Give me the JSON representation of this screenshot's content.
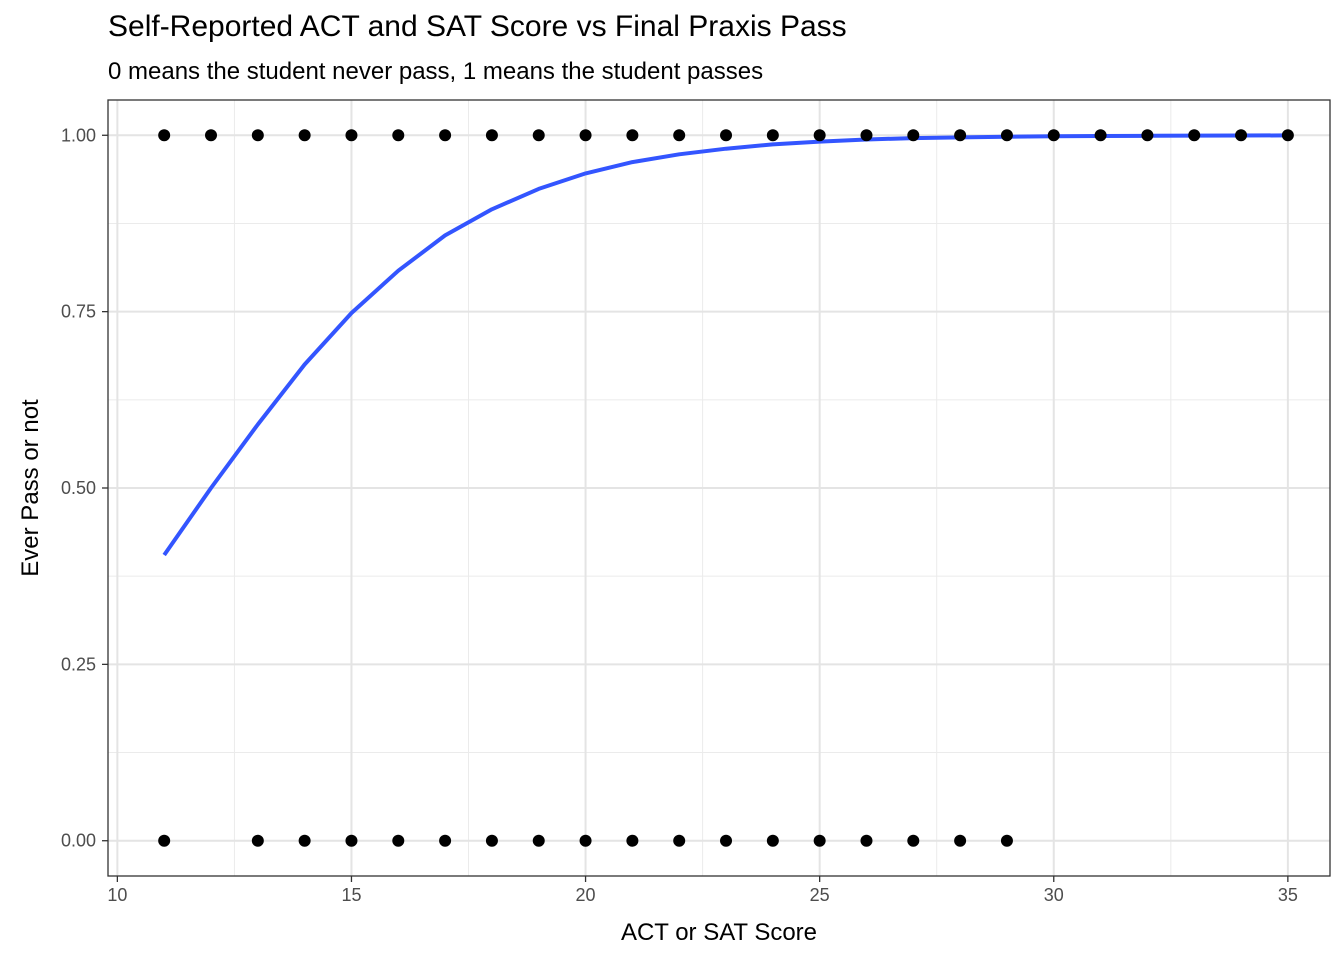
{
  "chart_data": {
    "type": "scatter",
    "title": "Self-Reported ACT and SAT Score vs Final Praxis Pass",
    "subtitle": "0 means the student never pass, 1 means the student passes",
    "xlabel": "ACT or SAT Score",
    "ylabel": "Ever Pass or not",
    "xlim": [
      9.8,
      35.9
    ],
    "ylim": [
      -0.05,
      1.05
    ],
    "x_ticks": [
      10,
      15,
      20,
      25,
      30,
      35
    ],
    "x_tick_labels": [
      "10",
      "15",
      "20",
      "25",
      "30",
      "35"
    ],
    "y_ticks": [
      0,
      0.25,
      0.5,
      0.75,
      1
    ],
    "y_tick_labels": [
      "0.00",
      "0.25",
      "0.50",
      "0.75",
      "1.00"
    ],
    "grid": true,
    "point_color": "#000000",
    "fit_color": "#3355ff",
    "points": [
      {
        "x": 11,
        "y": 1
      },
      {
        "x": 12,
        "y": 1
      },
      {
        "x": 13,
        "y": 1
      },
      {
        "x": 14,
        "y": 1
      },
      {
        "x": 15,
        "y": 1
      },
      {
        "x": 16,
        "y": 1
      },
      {
        "x": 17,
        "y": 1
      },
      {
        "x": 18,
        "y": 1
      },
      {
        "x": 19,
        "y": 1
      },
      {
        "x": 20,
        "y": 1
      },
      {
        "x": 21,
        "y": 1
      },
      {
        "x": 22,
        "y": 1
      },
      {
        "x": 23,
        "y": 1
      },
      {
        "x": 24,
        "y": 1
      },
      {
        "x": 25,
        "y": 1
      },
      {
        "x": 26,
        "y": 1
      },
      {
        "x": 27,
        "y": 1
      },
      {
        "x": 28,
        "y": 1
      },
      {
        "x": 29,
        "y": 1
      },
      {
        "x": 30,
        "y": 1
      },
      {
        "x": 31,
        "y": 1
      },
      {
        "x": 32,
        "y": 1
      },
      {
        "x": 33,
        "y": 1
      },
      {
        "x": 34,
        "y": 1
      },
      {
        "x": 35,
        "y": 1
      },
      {
        "x": 11,
        "y": 0
      },
      {
        "x": 13,
        "y": 0
      },
      {
        "x": 14,
        "y": 0
      },
      {
        "x": 15,
        "y": 0
      },
      {
        "x": 16,
        "y": 0
      },
      {
        "x": 17,
        "y": 0
      },
      {
        "x": 18,
        "y": 0
      },
      {
        "x": 19,
        "y": 0
      },
      {
        "x": 20,
        "y": 0
      },
      {
        "x": 21,
        "y": 0
      },
      {
        "x": 22,
        "y": 0
      },
      {
        "x": 23,
        "y": 0
      },
      {
        "x": 24,
        "y": 0
      },
      {
        "x": 25,
        "y": 0
      },
      {
        "x": 26,
        "y": 0
      },
      {
        "x": 27,
        "y": 0
      },
      {
        "x": 28,
        "y": 0
      },
      {
        "x": 29,
        "y": 0
      }
    ],
    "fit_curve": {
      "type": "logistic",
      "x": [
        11,
        12,
        13,
        14,
        15,
        16,
        17,
        18,
        19,
        20,
        21,
        22,
        23,
        24,
        25,
        26,
        27,
        28,
        29,
        30,
        31,
        32,
        33,
        34,
        35
      ],
      "y": [
        0.405,
        0.5,
        0.59,
        0.675,
        0.748,
        0.808,
        0.858,
        0.895,
        0.924,
        0.946,
        0.962,
        0.973,
        0.981,
        0.987,
        0.991,
        0.994,
        0.996,
        0.997,
        0.998,
        0.9985,
        0.999,
        0.9993,
        0.9995,
        0.9997,
        0.9998
      ]
    }
  }
}
